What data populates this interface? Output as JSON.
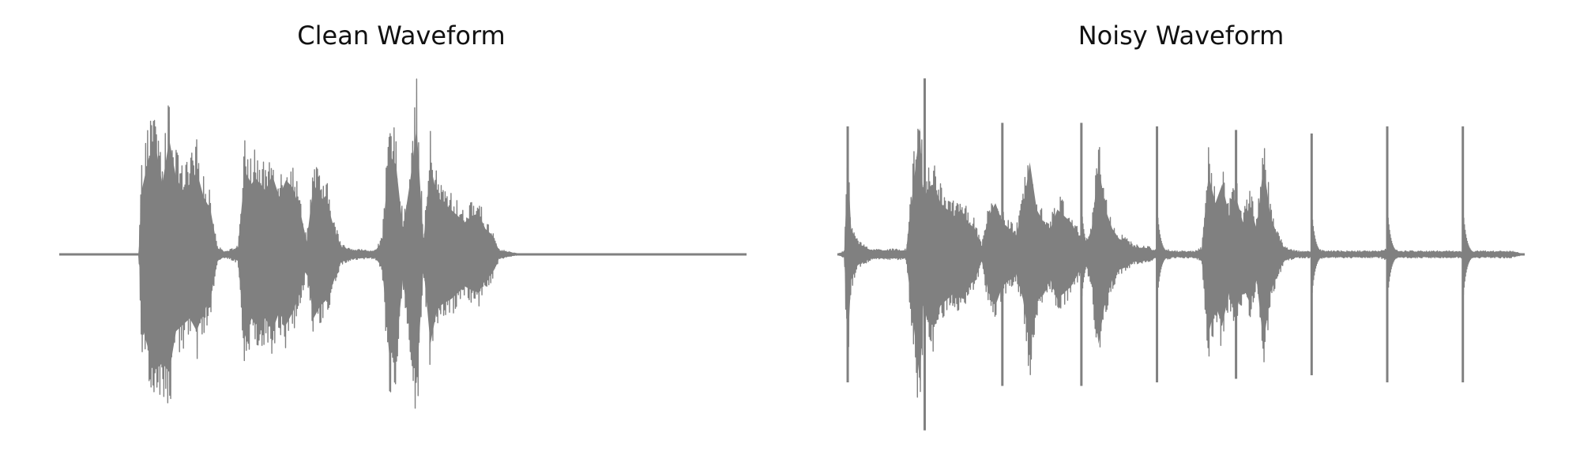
{
  "colors": {
    "background": "#ffffff",
    "waveform": "#808080",
    "title": "#111111"
  },
  "chart_data": [
    {
      "type": "line",
      "title": "Clean Waveform",
      "xlabel": "",
      "ylabel": "",
      "axes_visible": false,
      "grid": false,
      "x_range": [
        0,
        1
      ],
      "y_range": [
        -1,
        1
      ],
      "envelope": {
        "x": [
          0.0,
          0.116,
          0.118,
          0.12,
          0.13,
          0.14,
          0.15,
          0.16,
          0.17,
          0.18,
          0.19,
          0.2,
          0.21,
          0.22,
          0.23,
          0.24,
          0.25,
          0.26,
          0.27,
          0.28,
          0.285,
          0.3,
          0.31,
          0.32,
          0.33,
          0.34,
          0.35,
          0.36,
          0.37,
          0.38,
          0.39,
          0.4,
          0.41,
          0.42,
          0.43,
          0.44,
          0.45,
          0.46,
          0.47,
          0.48,
          0.49,
          0.5,
          0.51,
          0.52,
          0.53,
          0.54,
          0.55,
          0.56,
          0.57,
          0.58,
          0.59,
          0.6,
          0.61,
          0.62,
          0.63,
          0.64,
          0.65,
          0.66,
          0.67,
          0.68,
          0.69,
          0.7,
          0.72,
          1.0
        ],
        "upper": [
          0.0,
          0.0,
          0.3,
          0.5,
          0.75,
          0.85,
          0.55,
          0.9,
          0.6,
          0.5,
          0.55,
          0.65,
          0.45,
          0.35,
          0.05,
          0.02,
          0.03,
          0.05,
          0.65,
          0.55,
          0.6,
          0.5,
          0.62,
          0.45,
          0.58,
          0.52,
          0.35,
          0.1,
          0.55,
          0.45,
          0.4,
          0.2,
          0.06,
          0.04,
          0.03,
          0.03,
          0.02,
          0.03,
          0.1,
          0.78,
          0.7,
          0.2,
          0.55,
          0.99,
          0.1,
          0.7,
          0.45,
          0.4,
          0.35,
          0.3,
          0.25,
          0.3,
          0.32,
          0.2,
          0.15,
          0.03,
          0.02,
          0.01,
          0.0,
          0.0,
          0.0,
          0.0,
          0.0,
          0.0
        ],
        "lower": [
          0.0,
          0.0,
          -0.3,
          -0.55,
          -0.75,
          -0.9,
          -0.85,
          -0.92,
          -0.6,
          -0.55,
          -0.5,
          -0.6,
          -0.45,
          -0.35,
          -0.05,
          -0.02,
          -0.03,
          -0.05,
          -0.65,
          -0.5,
          -0.55,
          -0.5,
          -0.6,
          -0.45,
          -0.55,
          -0.45,
          -0.3,
          -0.1,
          -0.5,
          -0.4,
          -0.35,
          -0.2,
          -0.06,
          -0.04,
          -0.03,
          -0.03,
          -0.02,
          -0.03,
          -0.1,
          -0.78,
          -0.75,
          -0.2,
          -0.6,
          -0.99,
          -0.1,
          -0.7,
          -0.42,
          -0.38,
          -0.35,
          -0.3,
          -0.25,
          -0.28,
          -0.3,
          -0.2,
          -0.15,
          -0.03,
          -0.02,
          -0.01,
          0.0,
          0.0,
          0.0,
          0.0,
          0.0,
          0.0
        ]
      }
    },
    {
      "type": "line",
      "title": "Noisy Waveform",
      "xlabel": "",
      "ylabel": "",
      "axes_visible": false,
      "grid": false,
      "x_range": [
        0,
        1
      ],
      "y_range": [
        -1,
        1
      ],
      "envelope": {
        "x": [
          0.0,
          0.01,
          0.015,
          0.02,
          0.03,
          0.05,
          0.1,
          0.12,
          0.125,
          0.13,
          0.14,
          0.15,
          0.16,
          0.17,
          0.18,
          0.19,
          0.2,
          0.21,
          0.22,
          0.23,
          0.24,
          0.25,
          0.26,
          0.27,
          0.28,
          0.29,
          0.3,
          0.31,
          0.32,
          0.33,
          0.34,
          0.35,
          0.36,
          0.37,
          0.38,
          0.39,
          0.4,
          0.41,
          0.42,
          0.43,
          0.44,
          0.45,
          0.46,
          0.47,
          0.48,
          0.49,
          0.5,
          0.51,
          0.52,
          0.53,
          0.54,
          0.55,
          0.56,
          0.57,
          0.58,
          0.59,
          0.6,
          0.61,
          0.62,
          0.63,
          0.64,
          0.65,
          0.66,
          0.67,
          0.68,
          0.69,
          0.7,
          0.71,
          0.72,
          0.73,
          0.74,
          0.75,
          0.76,
          0.77,
          0.78,
          0.79,
          0.8,
          0.82,
          0.84,
          0.86,
          0.88,
          0.9,
          0.92,
          0.94,
          0.96,
          0.98,
          1.0
        ],
        "upper": [
          0.0,
          0.02,
          0.72,
          0.2,
          0.08,
          0.03,
          0.03,
          0.99,
          0.4,
          0.5,
          0.55,
          0.4,
          0.35,
          0.3,
          0.35,
          0.25,
          0.2,
          0.05,
          0.3,
          0.4,
          0.25,
          0.2,
          0.15,
          0.35,
          0.72,
          0.35,
          0.25,
          0.2,
          0.35,
          0.3,
          0.25,
          0.15,
          0.05,
          0.2,
          0.7,
          0.35,
          0.2,
          0.12,
          0.1,
          0.06,
          0.05,
          0.05,
          0.03,
          0.02,
          0.03,
          0.02,
          0.02,
          0.02,
          0.02,
          0.04,
          0.62,
          0.4,
          0.55,
          0.3,
          0.45,
          0.25,
          0.38,
          0.2,
          0.7,
          0.3,
          0.15,
          0.05,
          0.03,
          0.02,
          0.02,
          0.02,
          0.03,
          0.02,
          0.02,
          0.02,
          0.02,
          0.02,
          0.02,
          0.02,
          0.02,
          0.02,
          0.04,
          0.02,
          0.02,
          0.02,
          0.02,
          0.02,
          0.02,
          0.02,
          0.02,
          0.02,
          0.0
        ],
        "lower": [
          0.0,
          -0.02,
          -0.72,
          -0.2,
          -0.08,
          -0.03,
          -0.03,
          -0.99,
          -0.4,
          -0.5,
          -0.55,
          -0.4,
          -0.35,
          -0.3,
          -0.35,
          -0.25,
          -0.2,
          -0.05,
          -0.3,
          -0.4,
          -0.25,
          -0.2,
          -0.15,
          -0.35,
          -0.72,
          -0.35,
          -0.25,
          -0.2,
          -0.35,
          -0.3,
          -0.25,
          -0.15,
          -0.05,
          -0.2,
          -0.7,
          -0.35,
          -0.2,
          -0.12,
          -0.1,
          -0.06,
          -0.05,
          -0.05,
          -0.03,
          -0.02,
          -0.03,
          -0.02,
          -0.02,
          -0.02,
          -0.02,
          -0.04,
          -0.62,
          -0.4,
          -0.55,
          -0.3,
          -0.45,
          -0.25,
          -0.38,
          -0.2,
          -0.7,
          -0.3,
          -0.15,
          -0.05,
          -0.03,
          -0.02,
          -0.02,
          -0.02,
          -0.03,
          -0.02,
          -0.02,
          -0.02,
          -0.02,
          -0.02,
          -0.02,
          -0.02,
          -0.02,
          -0.02,
          -0.04,
          -0.02,
          -0.02,
          -0.02,
          -0.02,
          -0.02,
          -0.02,
          -0.02,
          -0.02,
          -0.02,
          0.0
        ]
      },
      "spikes": [
        {
          "x": 0.015,
          "amplitude": 0.72
        },
        {
          "x": 0.127,
          "amplitude": 0.99
        },
        {
          "x": 0.24,
          "amplitude": 0.74
        },
        {
          "x": 0.355,
          "amplitude": 0.74
        },
        {
          "x": 0.465,
          "amplitude": 0.72
        },
        {
          "x": 0.58,
          "amplitude": 0.7
        },
        {
          "x": 0.69,
          "amplitude": 0.68
        },
        {
          "x": 0.8,
          "amplitude": 0.72
        },
        {
          "x": 0.91,
          "amplitude": 0.72
        }
      ]
    }
  ]
}
